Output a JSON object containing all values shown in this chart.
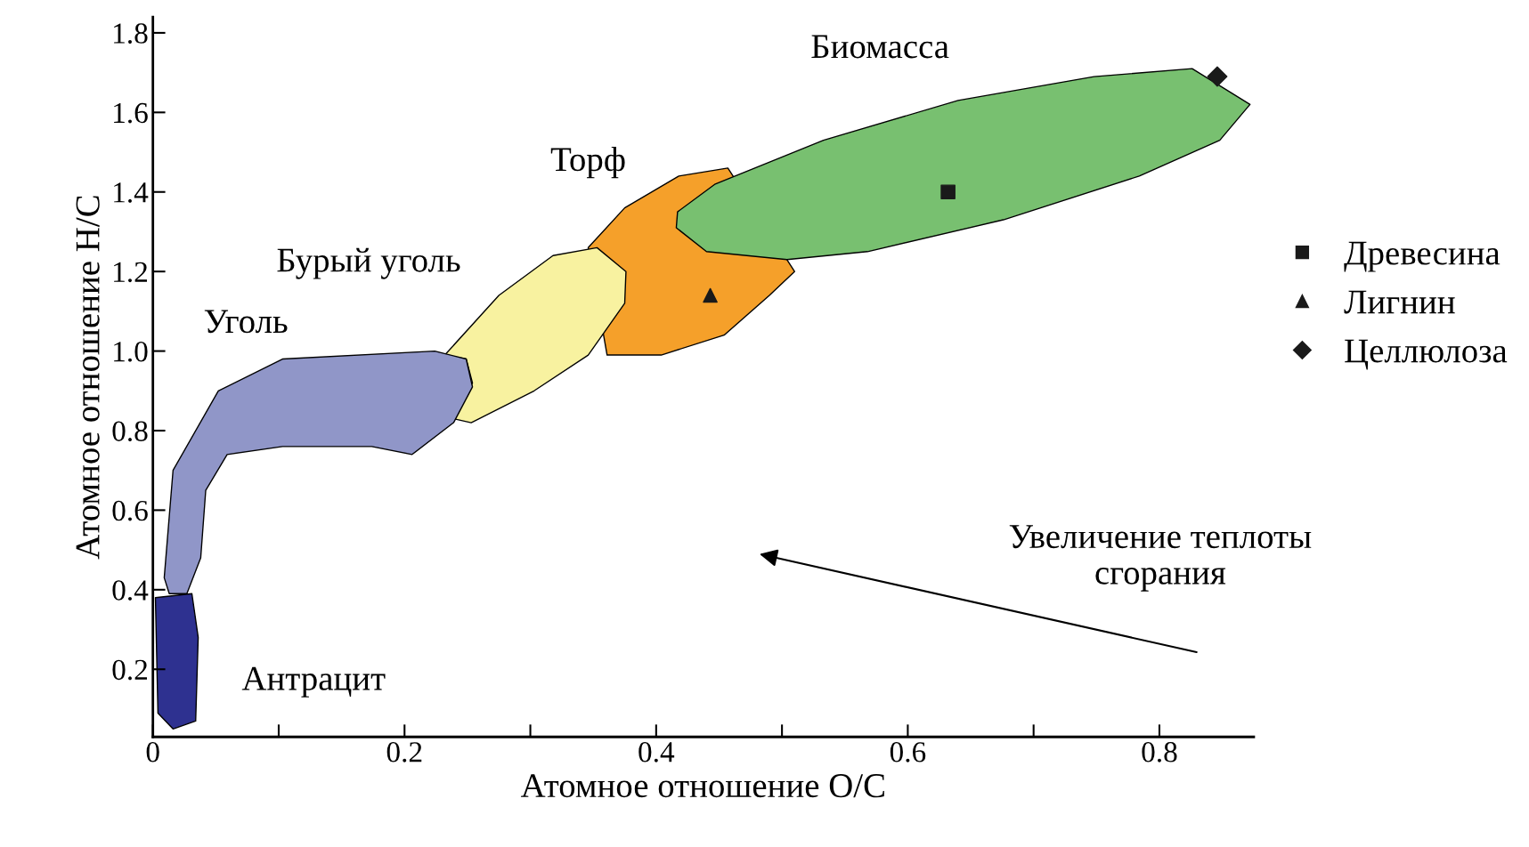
{
  "chart_data": {
    "type": "scatter",
    "xlabel": "Атомное отношение O/C",
    "ylabel": "Атомное отношение H/C",
    "xlim": [
      0,
      0.875
    ],
    "ylim": [
      0.03,
      1.84
    ],
    "xticks": [
      0,
      {
        "value": 0.1,
        "label": null
      },
      0.2,
      {
        "value": 0.3,
        "label": null
      },
      0.4,
      {
        "value": 0.5,
        "label": null
      },
      0.6,
      {
        "value": 0.7,
        "label": null
      },
      0.8
    ],
    "yticks": [
      0.2,
      0.4,
      0.6,
      0.8,
      {
        "value": 1.0,
        "label": "1.0"
      },
      1.2,
      1.4,
      1.6,
      1.8
    ],
    "grid": false,
    "legend": "right",
    "series": [
      {
        "type": "area",
        "name": "Торф",
        "color": "#f5a02a",
        "x": [
          0.346,
          0.375,
          0.418,
          0.457,
          0.51,
          0.49,
          0.454,
          0.404,
          0.361
        ],
        "values": [
          1.26,
          1.36,
          1.44,
          1.46,
          1.2,
          1.14,
          1.04,
          0.99,
          0.99
        ]
      },
      {
        "type": "area",
        "name": "Биомасса",
        "color": "#78c070",
        "x": [
          0.417,
          0.447,
          0.533,
          0.64,
          0.748,
          0.826,
          0.872,
          0.848,
          0.784,
          0.676,
          0.568,
          0.504,
          0.44,
          0.416
        ],
        "values": [
          1.35,
          1.42,
          1.53,
          1.63,
          1.69,
          1.71,
          1.62,
          1.53,
          1.44,
          1.33,
          1.25,
          1.23,
          1.25,
          1.31
        ]
      },
      {
        "type": "area",
        "name": "Бурый уголь",
        "color": "#f8f2a0",
        "x": [
          0.232,
          0.275,
          0.318,
          0.353,
          0.376,
          0.375,
          0.346,
          0.303,
          0.253,
          0.239,
          0.254,
          0.249
        ],
        "values": [
          0.99,
          1.14,
          1.24,
          1.26,
          1.2,
          1.12,
          0.99,
          0.9,
          0.82,
          0.83,
          0.92,
          0.98
        ]
      },
      {
        "type": "area",
        "name": "Уголь",
        "color": "#9096c8",
        "x": [
          0.009,
          0.016,
          0.052,
          0.103,
          0.224,
          0.249,
          0.254,
          0.239,
          0.206,
          0.174,
          0.103,
          0.059,
          0.042,
          0.038,
          0.027,
          0.013
        ],
        "values": [
          0.43,
          0.7,
          0.9,
          0.98,
          1.0,
          0.98,
          0.91,
          0.82,
          0.74,
          0.76,
          0.76,
          0.74,
          0.65,
          0.48,
          0.39,
          0.39
        ]
      },
      {
        "type": "area",
        "name": "Антрацит",
        "color": "#2e3190",
        "x": [
          0.002,
          0.031,
          0.036,
          0.034,
          0.016,
          0.004
        ],
        "values": [
          0.38,
          0.39,
          0.28,
          0.07,
          0.05,
          0.09
        ]
      },
      {
        "name": "Древесина",
        "color": "#1a1a1a",
        "marker": "square",
        "x": [
          0.632
        ],
        "values": [
          1.4
        ]
      },
      {
        "name": "Лигнин",
        "color": "#1a1a1a",
        "marker": "triangle",
        "x": [
          0.443
        ],
        "values": [
          1.14
        ]
      },
      {
        "name": "Целлюлоза",
        "color": "#1a1a1a",
        "marker": "diamond",
        "x": [
          0.846
        ],
        "values": [
          1.69
        ]
      }
    ],
    "annotations": [
      "Увеличение теплоты\nсгорания"
    ]
  }
}
